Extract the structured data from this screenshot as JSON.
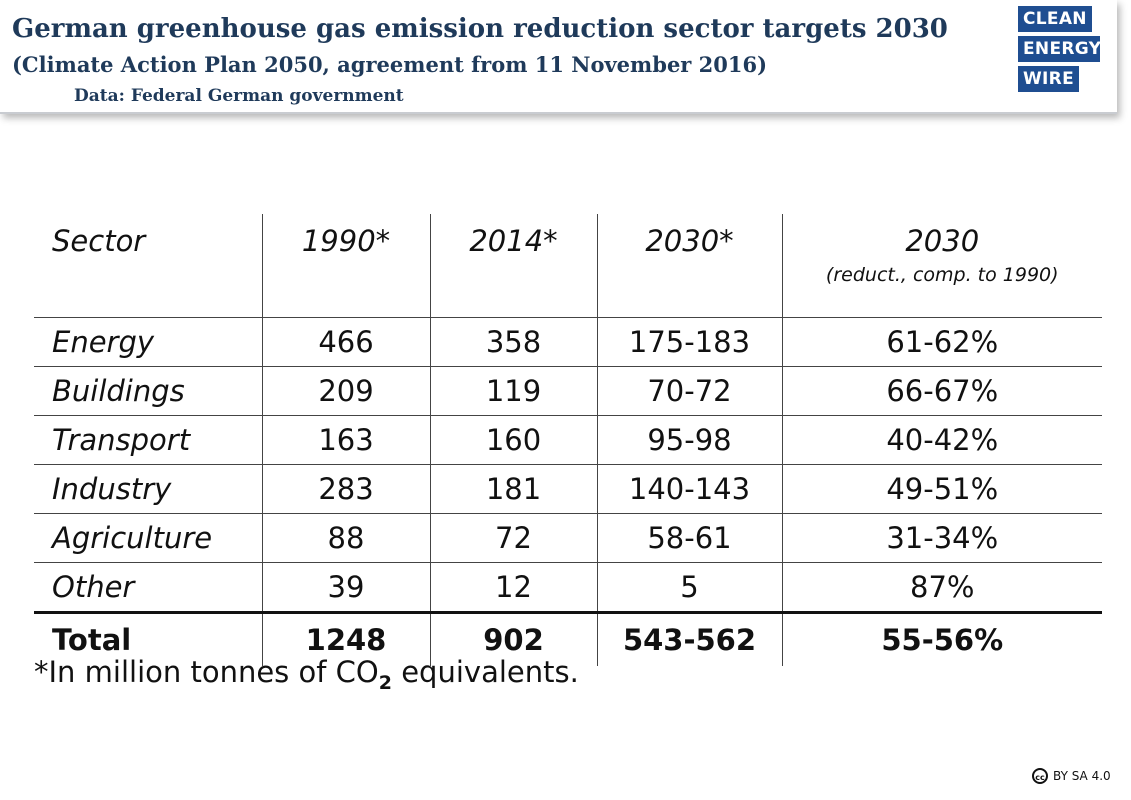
{
  "header": {
    "title": "German greenhouse gas emission reduction sector targets 2030",
    "subtitle": "(Climate Action Plan 2050, agreement from 11 November 2016)",
    "source": "Data: Federal German government",
    "logo_lines": [
      "CLEAN",
      "ENERGY",
      "WIRE"
    ],
    "logo_color": "#1f4e91",
    "title_color": "#1f3a5a"
  },
  "chart_data": {
    "type": "table",
    "columns": [
      "Sector",
      "1990*",
      "2014*",
      "2030*",
      "2030"
    ],
    "column_note": "(reduct., comp. to 1990)",
    "rows": [
      [
        "Energy",
        "466",
        "358",
        "175-183",
        "61-62%"
      ],
      [
        "Buildings",
        "209",
        "119",
        "70-72",
        "66-67%"
      ],
      [
        "Transport",
        "163",
        "160",
        "95-98",
        "40-42%"
      ],
      [
        "Industry",
        "283",
        "181",
        "140-143",
        "49-51%"
      ],
      [
        "Agriculture",
        "88",
        "72",
        "58-61",
        "31-34%"
      ],
      [
        "Other",
        "39",
        "12",
        "5",
        "87%"
      ]
    ],
    "total": [
      "Total",
      "1248",
      "902",
      "543-562",
      "55-56%"
    ]
  },
  "footnote": {
    "prefix": "*In million tonnes of CO",
    "subscript": "2",
    "suffix": " equivalents."
  },
  "license": {
    "icon": "creative-commons-icon",
    "icon_text": "cc",
    "text": "BY SA 4.0"
  }
}
